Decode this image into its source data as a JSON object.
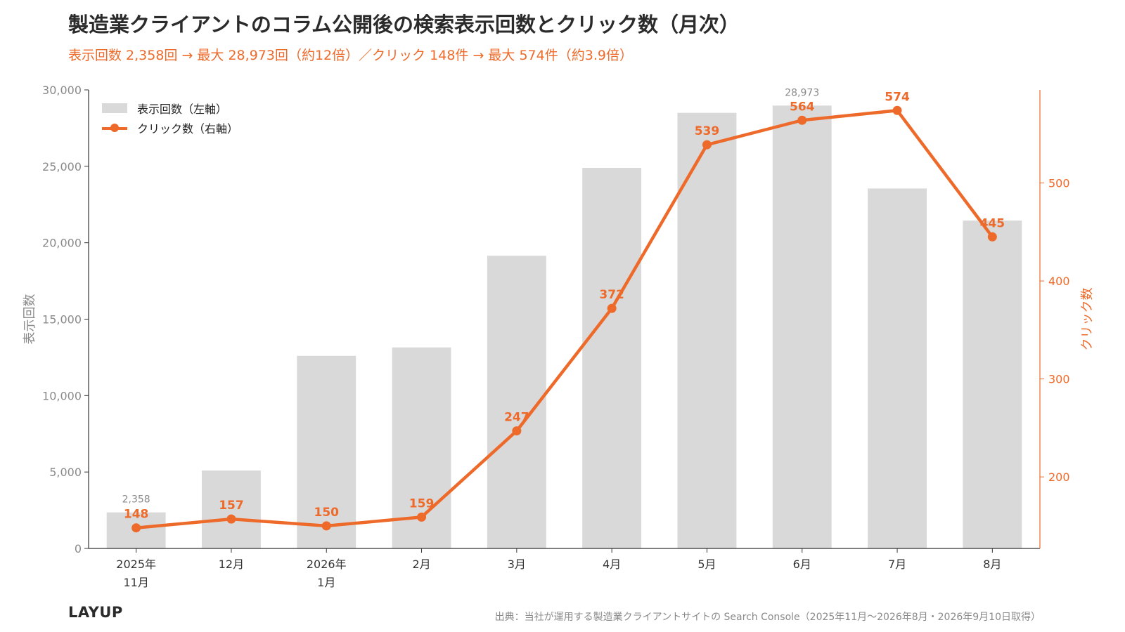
{
  "title": "製造業クライアントのコラム公開後の検索表示回数とクリック数（月次）",
  "subtitle": "表示回数 2,358回 → 最大 28,973回（約12倍）／クリック 148件 → 最大 574件（約3.9倍）",
  "logo": "LAYUP",
  "source": "出典：当社が運用する製造業クライアントサイトの Search Console（2025年11月〜2026年8月・2026年9月10日取得）",
  "colors": {
    "bar": "#d9d9d9",
    "line": "#ee6a2a",
    "axis": "#333333",
    "muted": "#8a8a8a"
  },
  "chart_data": {
    "type": "bar",
    "categories": [
      [
        "2025年",
        "11月"
      ],
      [
        "12月"
      ],
      [
        "2026年",
        "1月"
      ],
      [
        "2月"
      ],
      [
        "3月"
      ],
      [
        "4月"
      ],
      [
        "5月"
      ],
      [
        "6月"
      ],
      [
        "7月"
      ],
      [
        "8月"
      ]
    ],
    "series": [
      {
        "name": "表示回数（左軸）",
        "type": "bar",
        "axis": "left",
        "values": [
          2358,
          5100,
          12600,
          13150,
          19150,
          24900,
          28500,
          28973,
          23550,
          21450
        ]
      },
      {
        "name": "クリック数（右軸）",
        "type": "line",
        "axis": "right",
        "values": [
          148,
          157,
          150,
          159,
          247,
          372,
          539,
          564,
          574,
          445
        ]
      }
    ],
    "bar_annotations": [
      {
        "index": 0,
        "label": "2,358"
      },
      {
        "index": 7,
        "label": "28,973"
      }
    ],
    "ylabel_left": "表示回数",
    "ylabel_right": "クリック数",
    "ylim_left": [
      0,
      30000
    ],
    "yticks_left": [
      "0",
      "5,000",
      "10,000",
      "15,000",
      "20,000",
      "25,000",
      "30,000"
    ],
    "ylim_right": [
      127,
      595
    ],
    "yticks_right": [
      200,
      300,
      400,
      500
    ],
    "grid": false,
    "legend": "top-left"
  }
}
